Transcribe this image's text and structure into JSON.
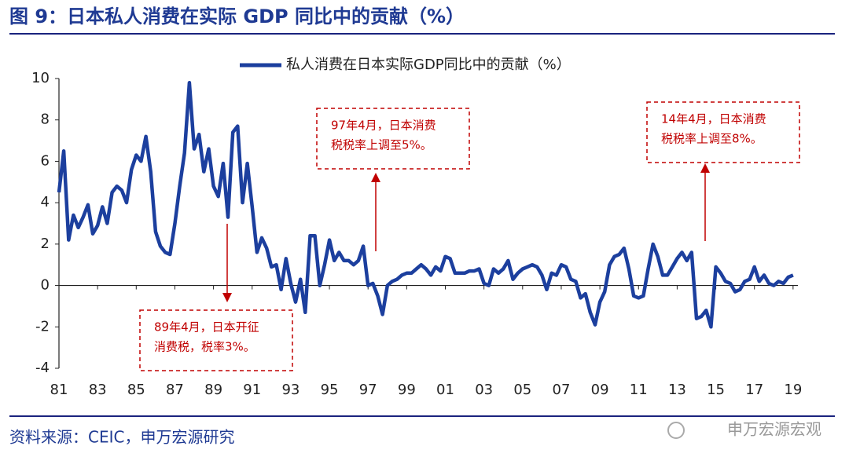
{
  "chart_data": {
    "type": "line",
    "title": "图 9：日本私人消费在实际 GDP 同比中的贡献（%）",
    "x": [
      1981,
      1981.25,
      1981.5,
      1981.75,
      1982,
      1982.25,
      1982.5,
      1982.75,
      1983,
      1983.25,
      1983.5,
      1983.75,
      1984,
      1984.25,
      1984.5,
      1984.75,
      1985,
      1985.25,
      1985.5,
      1985.75,
      1986,
      1986.25,
      1986.5,
      1986.75,
      1987,
      1987.25,
      1987.5,
      1987.75,
      1988,
      1988.25,
      1988.5,
      1988.75,
      1989,
      1989.25,
      1989.5,
      1989.75,
      1990,
      1990.25,
      1990.5,
      1990.75,
      1991,
      1991.25,
      1991.5,
      1991.75,
      1992,
      1992.25,
      1992.5,
      1992.75,
      1993,
      1993.25,
      1993.5,
      1993.75,
      1994,
      1994.25,
      1994.5,
      1994.75,
      1995,
      1995.25,
      1995.5,
      1995.75,
      1996,
      1996.25,
      1996.5,
      1996.75,
      1997,
      1997.25,
      1997.5,
      1997.75,
      1998,
      1998.25,
      1998.5,
      1998.75,
      1999,
      1999.25,
      1999.5,
      1999.75,
      2000,
      2000.25,
      2000.5,
      2000.75,
      2001,
      2001.25,
      2001.5,
      2001.75,
      2002,
      2002.25,
      2002.5,
      2002.75,
      2003,
      2003.25,
      2003.5,
      2003.75,
      2004,
      2004.25,
      2004.5,
      2004.75,
      2005,
      2005.25,
      2005.5,
      2005.75,
      2006,
      2006.25,
      2006.5,
      2006.75,
      2007,
      2007.25,
      2007.5,
      2007.75,
      2008,
      2008.25,
      2008.5,
      2008.75,
      2009,
      2009.25,
      2009.5,
      2009.75,
      2010,
      2010.25,
      2010.5,
      2010.75,
      2011,
      2011.25,
      2011.5,
      2011.75,
      2012,
      2012.25,
      2012.5,
      2012.75,
      2013,
      2013.25,
      2013.5,
      2013.75,
      2014,
      2014.25,
      2014.5,
      2014.75,
      2015,
      2015.25,
      2015.5,
      2015.75,
      2016,
      2016.25,
      2016.5,
      2016.75,
      2017,
      2017.25,
      2017.5,
      2017.75,
      2018,
      2018.25,
      2018.5,
      2018.75,
      2019
    ],
    "series": [
      {
        "name": "私人消费在日本实际GDP同比中的贡献（%）",
        "color": "#1c3f9e",
        "values": [
          4.5,
          6.5,
          2.2,
          3.4,
          2.8,
          3.3,
          3.9,
          2.5,
          2.9,
          3.8,
          3.0,
          4.5,
          4.8,
          4.6,
          4.0,
          5.6,
          6.3,
          6.0,
          7.2,
          5.5,
          2.6,
          1.9,
          1.6,
          1.5,
          3.0,
          4.8,
          6.4,
          9.8,
          6.6,
          7.3,
          5.5,
          6.6,
          4.8,
          4.3,
          5.9,
          3.3,
          7.4,
          7.7,
          4.0,
          5.9,
          3.8,
          1.6,
          2.3,
          1.8,
          0.9,
          1.0,
          -0.2,
          1.3,
          0.1,
          -0.8,
          0.3,
          -1.3,
          2.4,
          2.4,
          0.0,
          1.0,
          2.2,
          1.2,
          1.6,
          1.2,
          1.2,
          1.0,
          1.2,
          1.9,
          0.0,
          0.1,
          -0.5,
          -1.4,
          0.0,
          0.2,
          0.3,
          0.5,
          0.6,
          0.6,
          0.8,
          1.0,
          0.8,
          0.5,
          0.9,
          0.7,
          1.4,
          1.3,
          0.6,
          0.6,
          0.6,
          0.7,
          0.7,
          0.8,
          0.1,
          0.0,
          0.8,
          0.6,
          0.8,
          1.2,
          0.3,
          0.6,
          0.8,
          0.9,
          1.0,
          0.9,
          0.5,
          -0.2,
          0.6,
          0.5,
          1.0,
          0.9,
          0.3,
          0.2,
          -0.6,
          -0.4,
          -1.3,
          -1.9,
          -0.8,
          -0.3,
          1.0,
          1.4,
          1.5,
          1.8,
          0.8,
          -0.5,
          -0.6,
          -0.5,
          0.8,
          2.0,
          1.4,
          0.5,
          0.5,
          0.9,
          1.3,
          1.6,
          1.2,
          1.6,
          -1.6,
          -1.5,
          -1.2,
          -2.0,
          0.9,
          0.6,
          0.2,
          0.1,
          -0.3,
          -0.2,
          0.2,
          0.3,
          0.9,
          0.2,
          0.5,
          0.1,
          0.0,
          0.2,
          0.1,
          0.4,
          0.5
        ]
      }
    ],
    "xlim": [
      1981,
      2019.25
    ],
    "xticks": [
      {
        "value": 1981,
        "label": "81"
      },
      {
        "value": 1983,
        "label": "83"
      },
      {
        "value": 1985,
        "label": "85"
      },
      {
        "value": 1987,
        "label": "87"
      },
      {
        "value": 1989,
        "label": "89"
      },
      {
        "value": 1991,
        "label": "91"
      },
      {
        "value": 1993,
        "label": "93"
      },
      {
        "value": 1995,
        "label": "95"
      },
      {
        "value": 1997,
        "label": "97"
      },
      {
        "value": 1999,
        "label": "99"
      },
      {
        "value": 2001,
        "label": "01"
      },
      {
        "value": 2003,
        "label": "03"
      },
      {
        "value": 2005,
        "label": "05"
      },
      {
        "value": 2007,
        "label": "07"
      },
      {
        "value": 2009,
        "label": "09"
      },
      {
        "value": 2011,
        "label": "11"
      },
      {
        "value": 2013,
        "label": "13"
      },
      {
        "value": 2015,
        "label": "15"
      },
      {
        "value": 2017,
        "label": "17"
      },
      {
        "value": 2019,
        "label": "19"
      }
    ],
    "ylim": [
      -4,
      10
    ],
    "yticks": [
      -4,
      -2,
      0,
      2,
      4,
      6,
      8,
      10
    ],
    "grid": false,
    "legend": "top",
    "annotations": [
      {
        "lines": [
          "97年4月，日本消费",
          "税税率上调至5%。"
        ]
      },
      {
        "lines": [
          "14年4月，日本消费",
          "税税率上调至8%。"
        ]
      },
      {
        "lines": [
          "89年4月，日本开征",
          "消费税，税率3%。"
        ]
      }
    ]
  },
  "source": "资料来源：CEIC，申万宏源研究",
  "watermark": "申万宏源宏观"
}
